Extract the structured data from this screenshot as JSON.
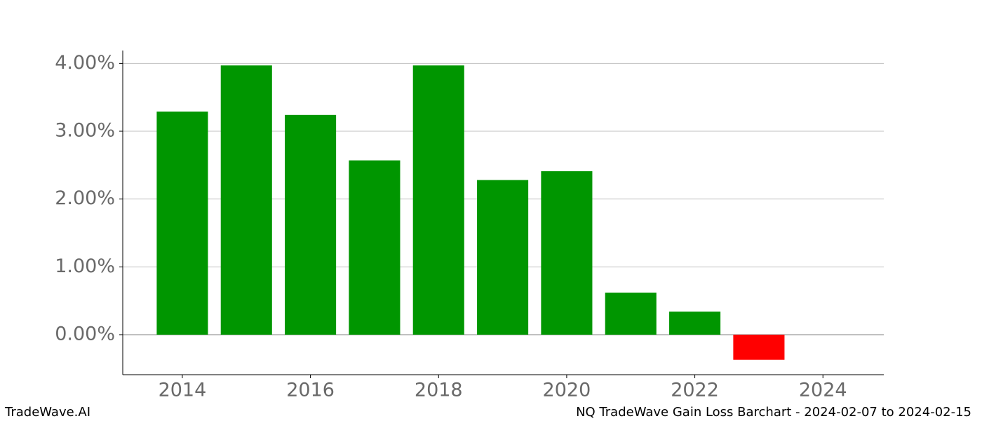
{
  "chart_data": {
    "type": "bar",
    "x": [
      2014,
      2015,
      2016,
      2017,
      2018,
      2019,
      2020,
      2021,
      2022,
      2023
    ],
    "values": [
      3.29,
      3.97,
      3.24,
      2.57,
      3.97,
      2.28,
      2.41,
      0.62,
      0.34,
      -0.37
    ],
    "colors": [
      "#009600",
      "#009600",
      "#009600",
      "#009600",
      "#009600",
      "#009600",
      "#009600",
      "#009600",
      "#009600",
      "#ff0000"
    ],
    "bar_width": 0.8,
    "xlim": [
      2013.07,
      2024.95
    ],
    "xticks": [
      2014,
      2016,
      2018,
      2020,
      2022,
      2024
    ],
    "ylim": [
      -0.59,
      4.19
    ],
    "yticks": [
      {
        "value": 0,
        "label": "0.00%"
      },
      {
        "value": 1,
        "label": "1.00%"
      },
      {
        "value": 2,
        "label": "2.00%"
      },
      {
        "value": 3,
        "label": "3.00%"
      },
      {
        "value": 4,
        "label": "4.00%"
      }
    ],
    "grid": true,
    "footer_left": "TradeWave.AI",
    "footer_right": "NQ TradeWave Gain Loss Barchart - 2024-02-07 to 2024-02-15"
  }
}
